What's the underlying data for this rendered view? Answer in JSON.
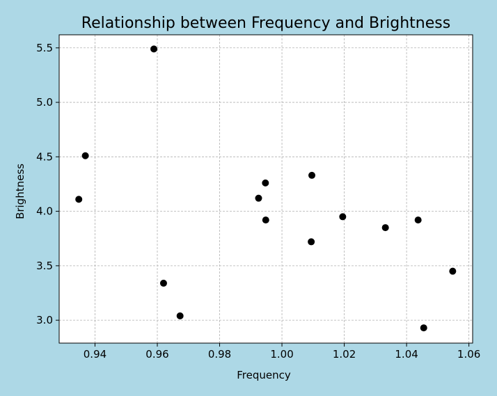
{
  "chart_data": {
    "type": "scatter",
    "title": "Relationship between Frequency and Brightness",
    "xlabel": "Frequency",
    "ylabel": "Brightness",
    "xlim": [
      0.9285,
      1.0612
    ],
    "ylim": [
      2.79,
      5.62
    ],
    "xticks": [
      0.94,
      0.96,
      0.98,
      1.0,
      1.02,
      1.04,
      1.06
    ],
    "xtick_labels": [
      "0.94",
      "0.96",
      "0.98",
      "1.00",
      "1.02",
      "1.04",
      "1.06"
    ],
    "yticks": [
      3.0,
      3.5,
      4.0,
      4.5,
      5.0,
      5.5
    ],
    "ytick_labels": [
      "3.0",
      "3.5",
      "4.0",
      "4.5",
      "5.0",
      "5.5"
    ],
    "grid": true,
    "marker_color": "#000000",
    "background_color": "#add8e6",
    "plot_background": "#ffffff",
    "points": [
      {
        "x": 0.9589,
        "y": 5.49
      },
      {
        "x": 0.9369,
        "y": 4.51
      },
      {
        "x": 0.9348,
        "y": 4.11
      },
      {
        "x": 0.962,
        "y": 3.34
      },
      {
        "x": 0.9673,
        "y": 3.04
      },
      {
        "x": 0.9947,
        "y": 4.26
      },
      {
        "x": 0.9925,
        "y": 4.12
      },
      {
        "x": 0.9948,
        "y": 3.92
      },
      {
        "x": 1.0096,
        "y": 4.33
      },
      {
        "x": 1.0094,
        "y": 3.72
      },
      {
        "x": 1.0195,
        "y": 3.95
      },
      {
        "x": 1.0332,
        "y": 3.85
      },
      {
        "x": 1.0437,
        "y": 3.92
      },
      {
        "x": 1.0548,
        "y": 3.45
      },
      {
        "x": 1.0455,
        "y": 2.93
      }
    ]
  }
}
